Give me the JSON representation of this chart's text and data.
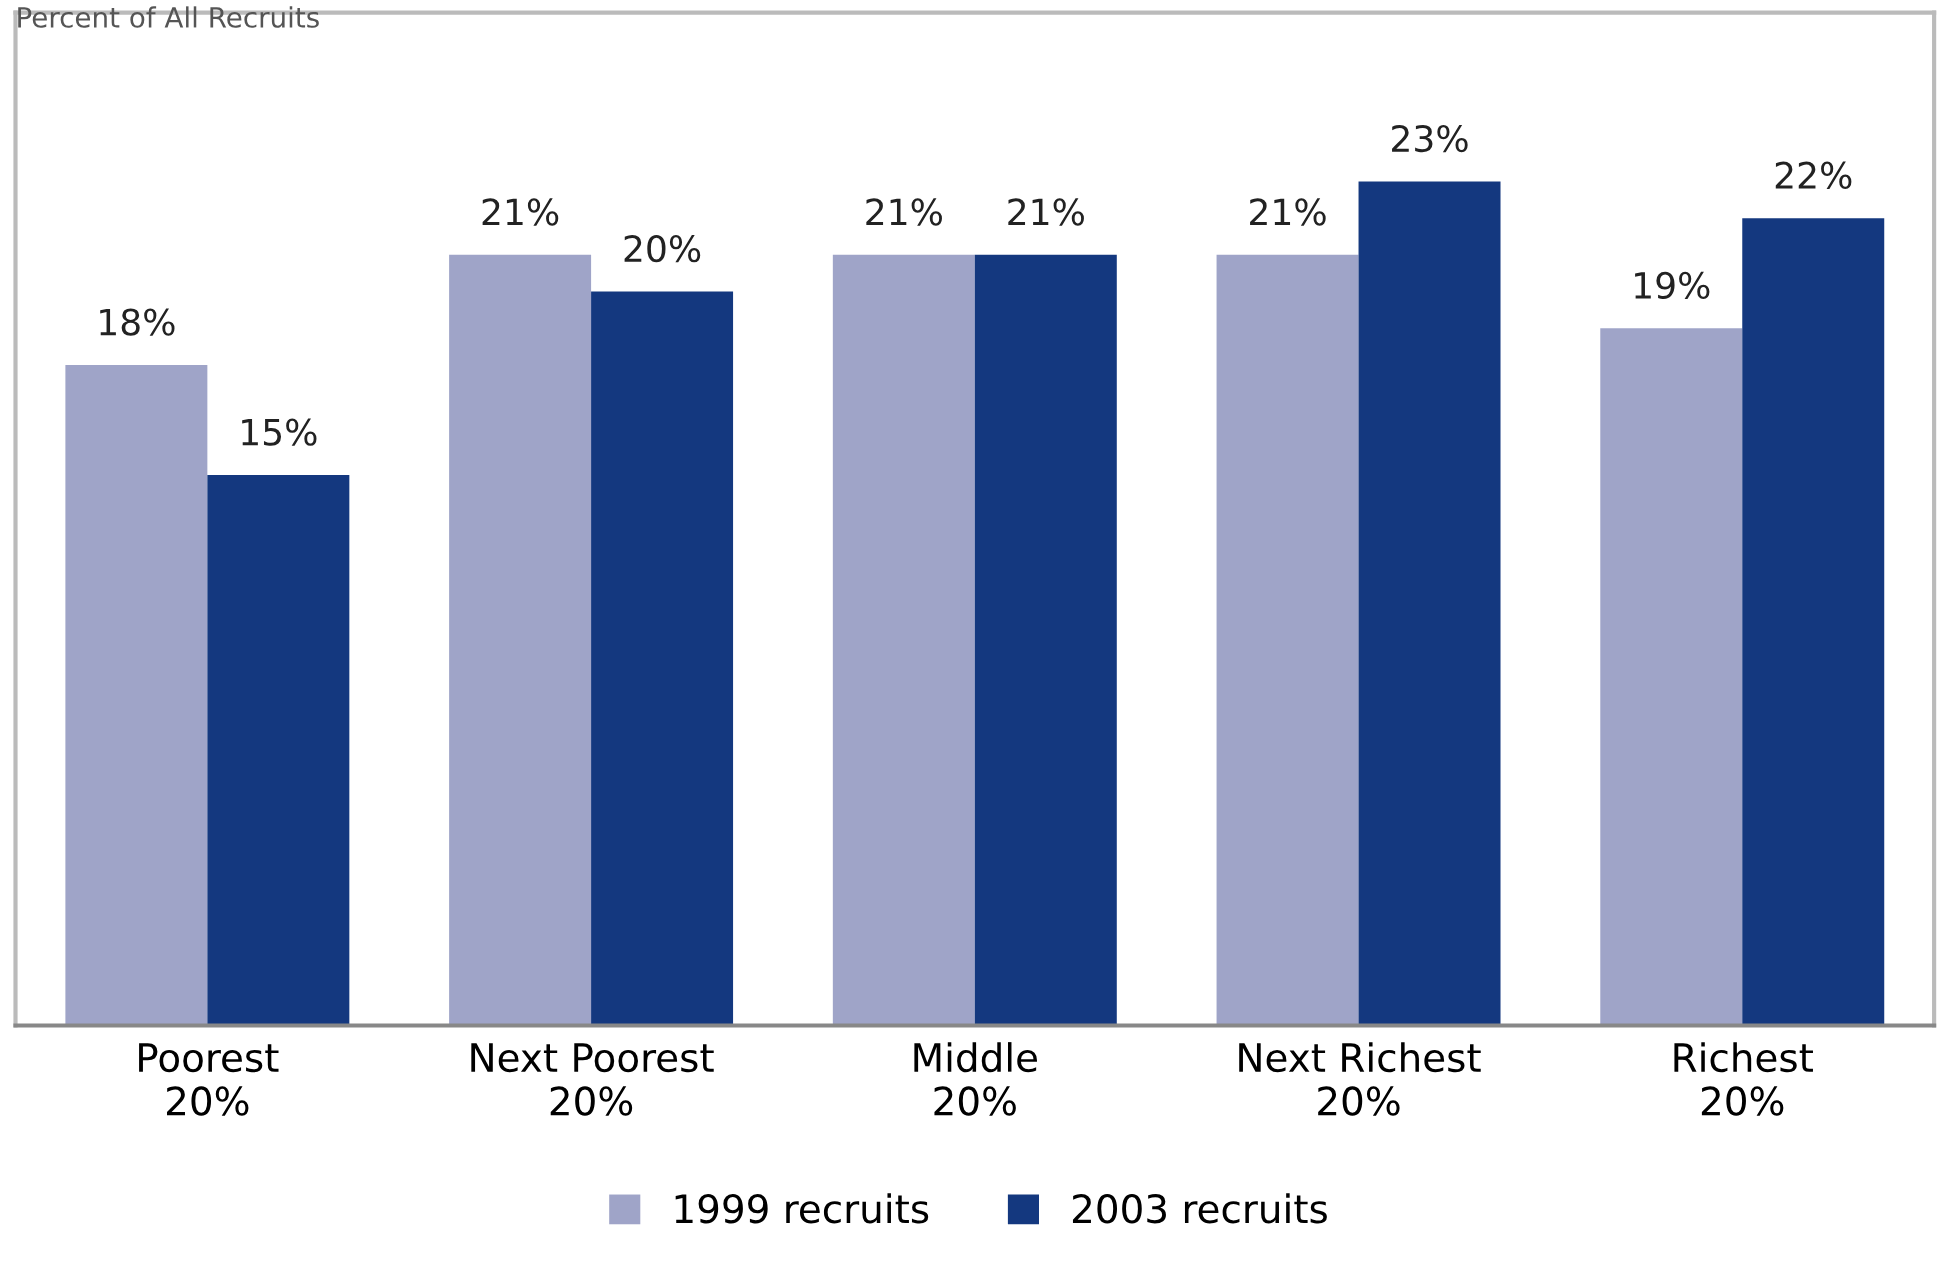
{
  "chart_data": {
    "type": "bar",
    "annotations": [
      "Percent of All Recruits"
    ],
    "categories": [
      "Poorest\n20%",
      "Next Poorest\n20%",
      "Middle\n20%",
      "Next Richest\n20%",
      "Richest\n20%"
    ],
    "series": [
      {
        "name": "1999 recruits",
        "color": "#9fa4c8",
        "values": [
          18,
          21,
          21,
          21,
          19
        ],
        "value_labels": [
          "18%",
          "21%",
          "21%",
          "21%",
          "19%"
        ]
      },
      {
        "name": "2003 recruits",
        "color": "#14387f",
        "values": [
          15,
          20,
          21,
          23,
          22
        ],
        "value_labels": [
          "15%",
          "20%",
          "21%",
          "23%",
          "22%"
        ]
      }
    ],
    "tick_labels": "x",
    "legend": "bottom",
    "grid": false
  }
}
